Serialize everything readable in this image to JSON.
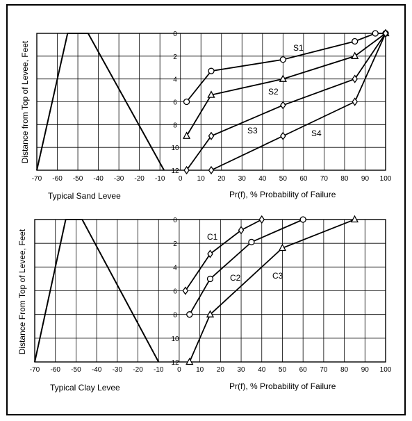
{
  "chart_data": [
    {
      "type": "line",
      "title": "",
      "panel_label": "Typical Sand Levee",
      "xlabel": "Pr(f), % Probability of Failure",
      "ylabel": "Distance from Top of Levee, Feet",
      "xlim": [
        -70,
        100
      ],
      "ylim": [
        12,
        0
      ],
      "x_ticks": [
        "-70",
        "-60",
        "-50",
        "-40",
        "-30",
        "-20",
        "-10",
        "0",
        "10",
        "20",
        "30",
        "40",
        "50",
        "60",
        "70",
        "80",
        "90",
        "100"
      ],
      "y_ticks": [
        "0",
        "2",
        "4",
        "6",
        "8",
        "10",
        "12"
      ],
      "grid": true,
      "levee_profile": {
        "x": [
          -70,
          -55,
          -45,
          -8
        ],
        "y": [
          12,
          0,
          0,
          12
        ]
      },
      "series": [
        {
          "name": "S1",
          "marker": "circle",
          "x": [
            3,
            15,
            50,
            85,
            95,
            100
          ],
          "y": [
            6,
            3.3,
            2.3,
            0.7,
            0,
            0
          ]
        },
        {
          "name": "S2",
          "marker": "triangle",
          "x": [
            3,
            15,
            50,
            85,
            100
          ],
          "y": [
            9,
            5.4,
            4,
            2,
            0
          ]
        },
        {
          "name": "S3",
          "marker": "diamond",
          "x": [
            3,
            15,
            50,
            85,
            100
          ],
          "y": [
            12,
            9,
            6.3,
            4,
            0
          ]
        },
        {
          "name": "S4",
          "marker": "diamond",
          "x": [
            15,
            50,
            85,
            100
          ],
          "y": [
            12,
            9,
            6,
            0
          ]
        }
      ]
    },
    {
      "type": "line",
      "title": "",
      "panel_label": "Typical Clay Levee",
      "xlabel": "Pr(f), % Probability of Failure",
      "ylabel": "Distance From Top of Levee, Feet",
      "xlim": [
        -70,
        100
      ],
      "ylim": [
        12,
        0
      ],
      "x_ticks": [
        "-70",
        "-60",
        "-50",
        "-40",
        "-30",
        "-20",
        "-10",
        "0",
        "10",
        "20",
        "30",
        "40",
        "50",
        "60",
        "70",
        "80",
        "90",
        "100"
      ],
      "y_ticks": [
        "0",
        "2",
        "4",
        "6",
        "8",
        "10",
        "12"
      ],
      "grid": true,
      "levee_profile": {
        "x": [
          -70,
          -55,
          -47,
          -10
        ],
        "y": [
          12,
          0,
          0,
          12
        ]
      },
      "series": [
        {
          "name": "C1",
          "marker": "diamond",
          "x": [
            3,
            15,
            30,
            40
          ],
          "y": [
            6,
            2.9,
            0.9,
            0
          ]
        },
        {
          "name": "C2",
          "marker": "circle",
          "x": [
            5,
            15,
            35,
            60
          ],
          "y": [
            8,
            5,
            1.9,
            0
          ]
        },
        {
          "name": "C3",
          "marker": "triangle",
          "x": [
            5,
            15,
            50,
            85
          ],
          "y": [
            12,
            8,
            2.4,
            0
          ]
        }
      ]
    }
  ]
}
